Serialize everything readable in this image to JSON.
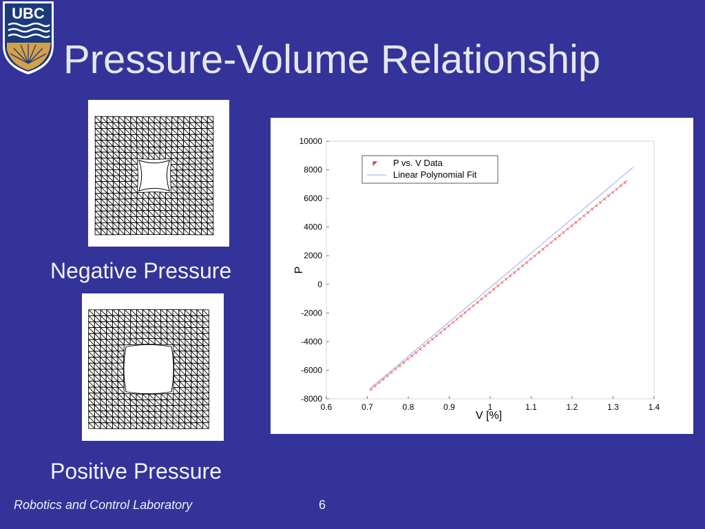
{
  "slide": {
    "title": "Pressure-Volume Relationship",
    "logo_text": "UBC",
    "caption_negative": "Negative Pressure",
    "caption_positive": "Positive Pressure",
    "footer_lab": "Robotics and Control Laboratory",
    "page_number": "6"
  },
  "colors": {
    "background": "#333399",
    "data_marker": "#e04040",
    "fit_line": "#9aaaf0",
    "logo_gold": "#d4a04a",
    "logo_blue": "#1a3a7a"
  },
  "chart_data": {
    "type": "scatter",
    "title": "",
    "xlabel": "V [%]",
    "ylabel": "P",
    "xlim": [
      0.6,
      1.4
    ],
    "ylim": [
      -8000,
      10000
    ],
    "x_ticks": [
      "0.6",
      "0.7",
      "0.8",
      "0.9",
      "1",
      "1.1",
      "1.2",
      "1.3",
      "1.4"
    ],
    "y_ticks": [
      "-8000",
      "-6000",
      "-4000",
      "-2000",
      "0",
      "2000",
      "4000",
      "6000",
      "8000",
      "10000"
    ],
    "legend_position": "top-center",
    "grid": false,
    "series": [
      {
        "name": "P vs. V Data",
        "kind": "markers",
        "x_range": [
          0.71,
          1.33
        ],
        "y_range": [
          -7300,
          7150
        ],
        "num_points": 63
      },
      {
        "name": "Linear Polynomial Fit",
        "kind": "line",
        "x": [
          0.71,
          1.35
        ],
        "y": [
          -7200,
          8200
        ]
      }
    ]
  }
}
